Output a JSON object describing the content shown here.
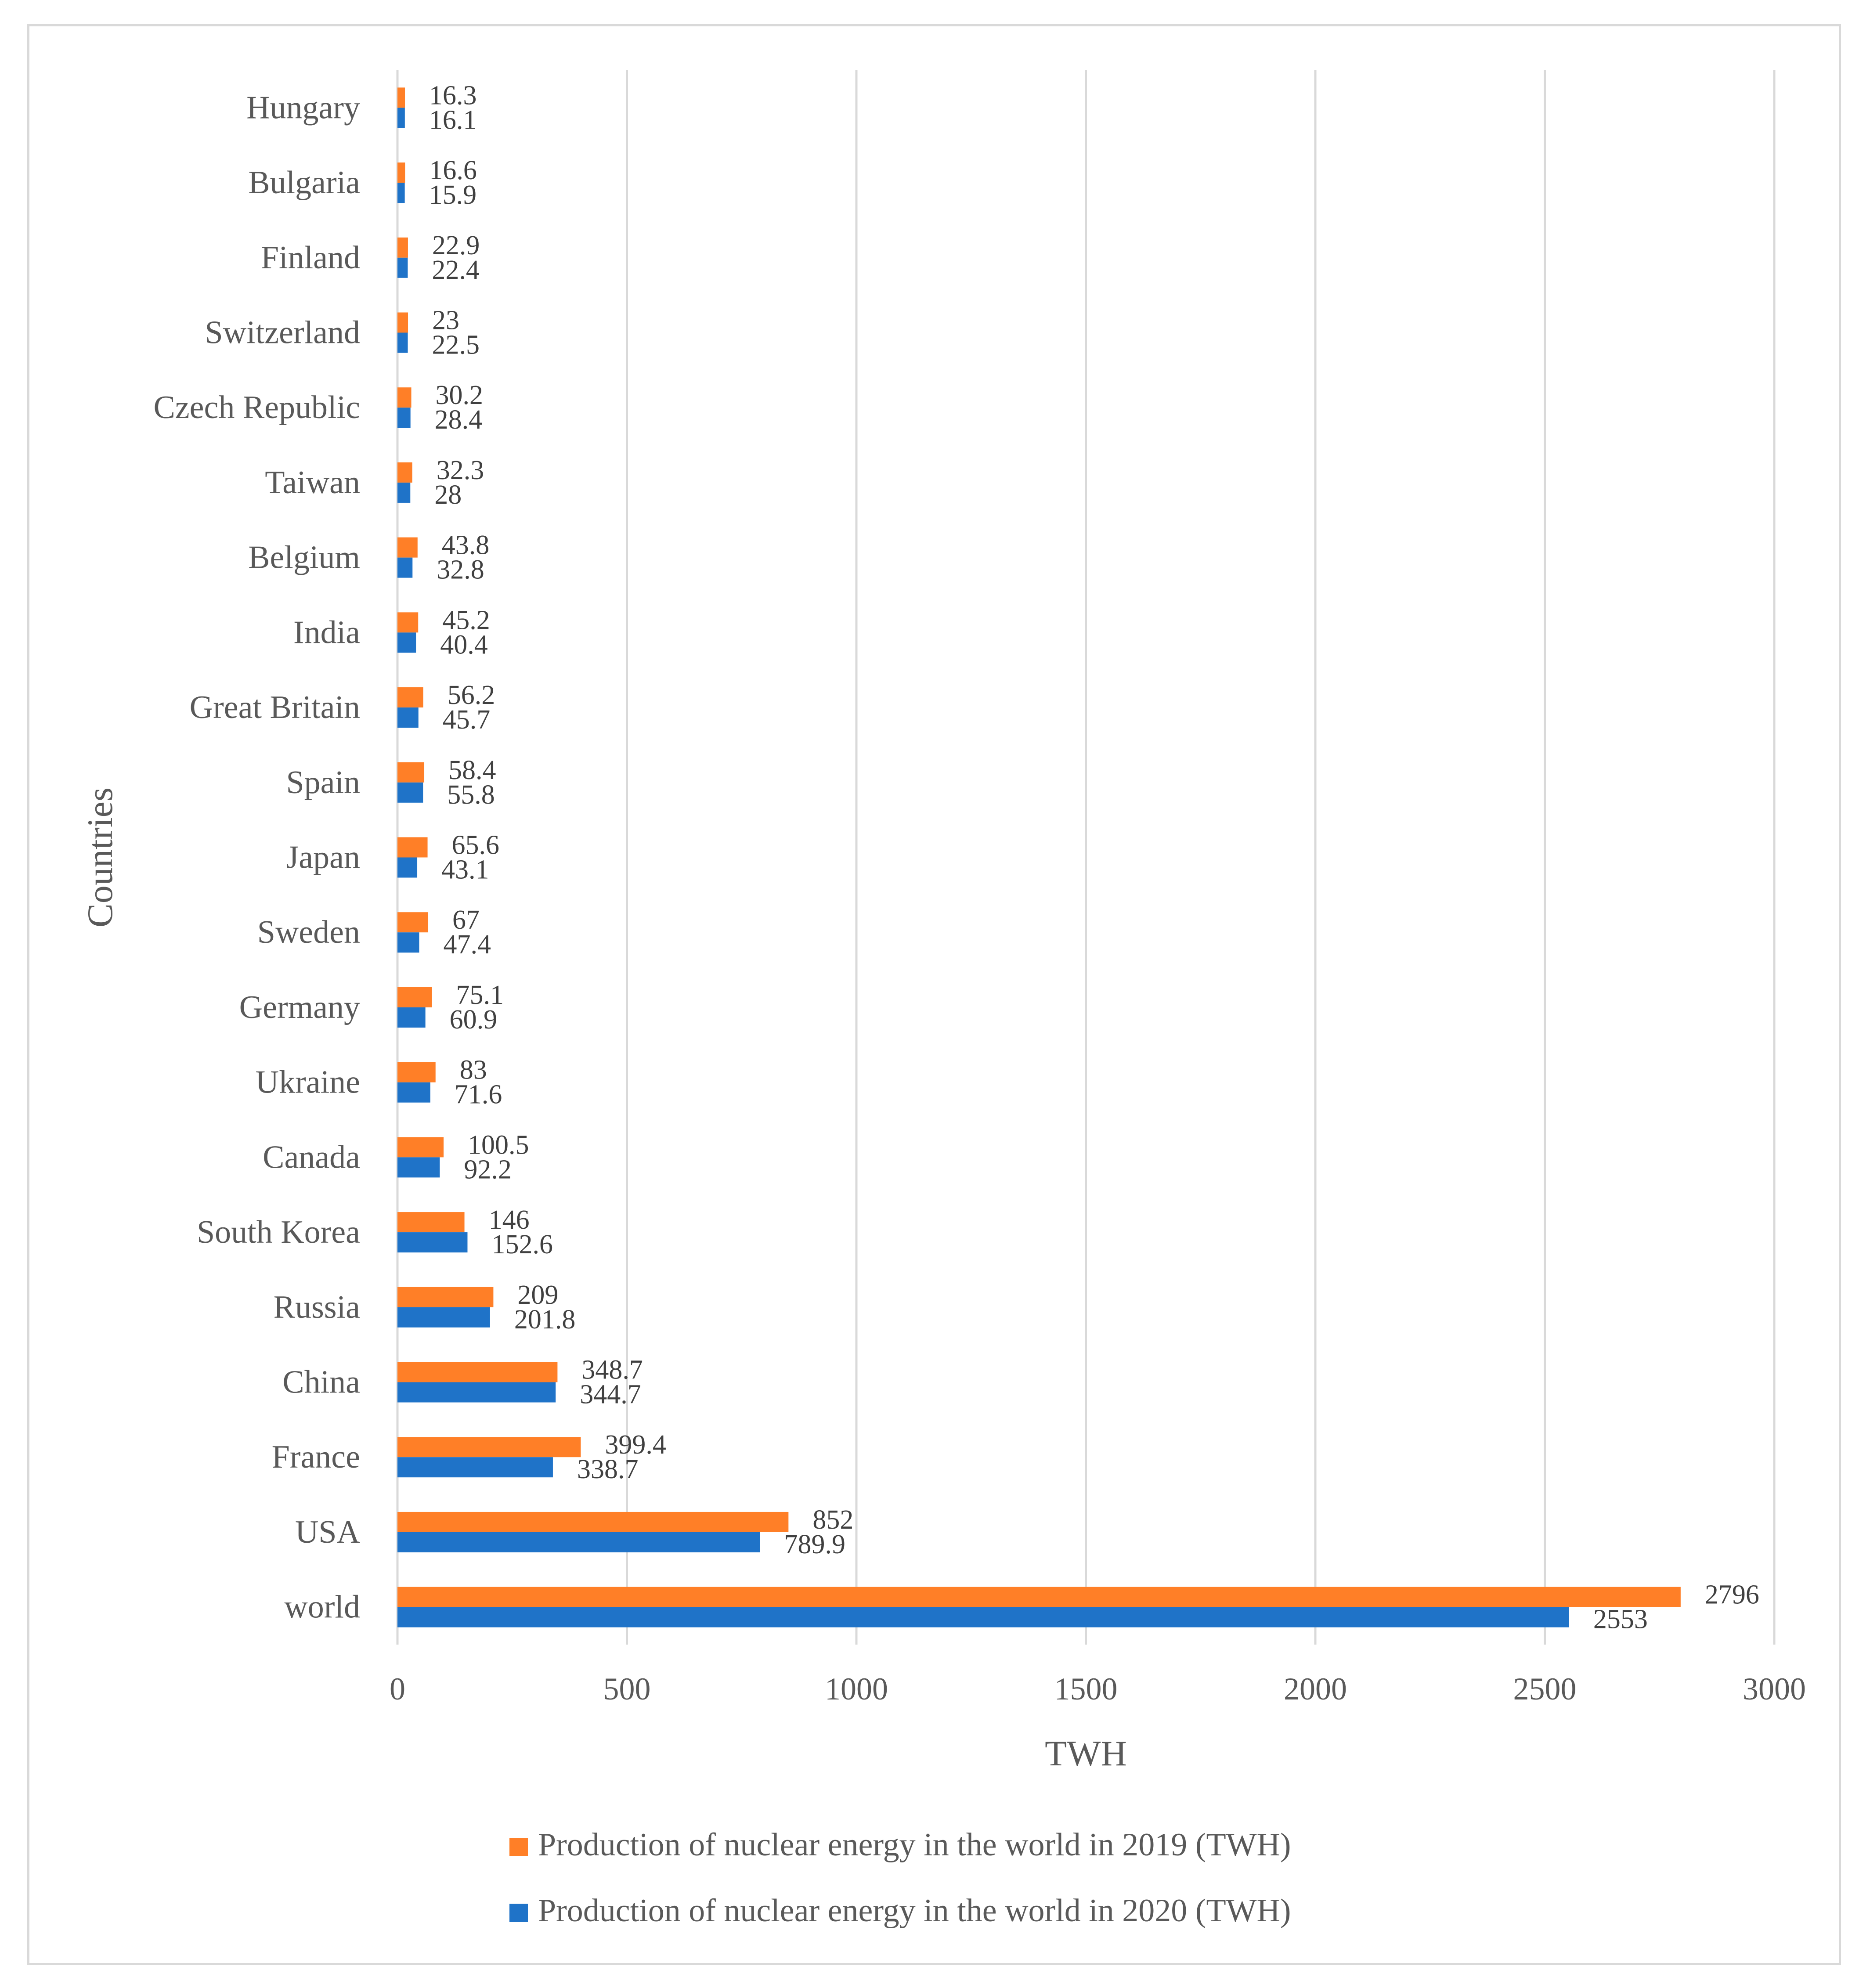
{
  "chart_data": {
    "type": "bar",
    "orientation": "horizontal",
    "categories": [
      "world",
      "USA",
      "France",
      "China",
      "Russia",
      "South Korea",
      "Canada",
      "Ukraine",
      "Germany",
      "Sweden",
      "Japan",
      "Spain",
      "Great Britain",
      "India",
      "Belgium",
      "Taiwan",
      "Czech Republic",
      "Switzerland",
      "Finland",
      "Bulgaria",
      "Hungary"
    ],
    "series": [
      {
        "name": "Production of nuclear energy in the world in 2019 (TWH)",
        "color": "#ff7f27",
        "values": [
          2796,
          852,
          399.4,
          348.7,
          209,
          146,
          100.5,
          83,
          75.1,
          67,
          65.6,
          58.4,
          56.2,
          45.2,
          43.8,
          32.3,
          30.2,
          23,
          22.9,
          16.6,
          16.3
        ]
      },
      {
        "name": "Production of nuclear energy in the world in 2020 (TWH)",
        "color": "#1f73c8",
        "values": [
          2553,
          789.9,
          338.7,
          344.7,
          201.8,
          152.6,
          92.2,
          71.6,
          60.9,
          47.4,
          43.1,
          55.8,
          45.7,
          40.4,
          32.8,
          28,
          28.4,
          22.5,
          22.4,
          15.9,
          16.1
        ]
      }
    ],
    "xlabel": "TWH",
    "ylabel": "Countries",
    "xlim": [
      0,
      3000
    ],
    "xticks": [
      0,
      500,
      1000,
      1500,
      2000,
      2500,
      3000
    ],
    "grid": "vertical",
    "legend_position": "bottom",
    "data_labels": true
  }
}
